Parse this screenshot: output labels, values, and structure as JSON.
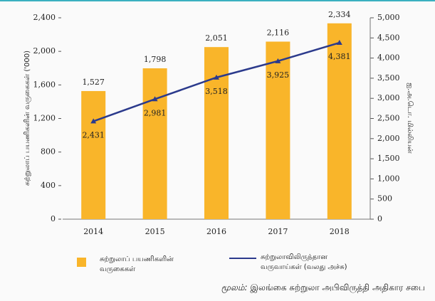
{
  "chart_data": {
    "type": "bar_line",
    "categories": [
      "2014",
      "2015",
      "2016",
      "2017",
      "2018"
    ],
    "series": [
      {
        "name": "சுற்றுலாப் பயணிகளின் வருகைகள்",
        "type": "bar",
        "color": "#f9b52a",
        "axis": "y",
        "values": [
          1527,
          1798,
          2051,
          2116,
          2334
        ],
        "value_labels": [
          "1,527",
          "1,798",
          "2,051",
          "2,116",
          "2,334"
        ]
      },
      {
        "name": "சுற்றுலாவிலிருந்தான வருவாய்கள் (வலது அச்சு)",
        "type": "line",
        "color": "#2b3a8c",
        "axis": "y2",
        "values": [
          2431,
          2981,
          3518,
          3925,
          4381
        ],
        "value_labels": [
          "2,431",
          "2,981",
          "3,518",
          "3,925",
          "4,381"
        ]
      }
    ],
    "ylabel": "சுற்றுலாப் பயணிகளின் வருகைகள் ('000)",
    "y2label": "ஐ.அ.டொ. மில்லியன்",
    "ylim": [
      0,
      2400
    ],
    "yticks": [
      0,
      400,
      800,
      {
        "value": 1200,
        "label": "1,200"
      },
      {
        "value": 1600,
        "label": "1,600"
      },
      {
        "value": 2000,
        "label": "2,000"
      },
      {
        "value": 2400,
        "label": "2,400"
      }
    ],
    "y2lim": [
      0,
      5000
    ],
    "y2ticks": [
      0,
      500,
      {
        "value": 1000,
        "label": "1,000"
      },
      {
        "value": 1500,
        "label": "1,500"
      },
      {
        "value": 2000,
        "label": "2,000"
      },
      {
        "value": 2500,
        "label": "2,500"
      },
      {
        "value": 3000,
        "label": "3,000"
      },
      {
        "value": 3500,
        "label": "3,500"
      },
      {
        "value": 4000,
        "label": "4,000"
      },
      {
        "value": 4500,
        "label": "4,500"
      },
      {
        "value": 5000,
        "label": "5,000"
      }
    ],
    "source_label": "மூலம்:",
    "source": "இலங்கை சுற்றுலா அபிவிருத்தி அதிகார சபை"
  }
}
